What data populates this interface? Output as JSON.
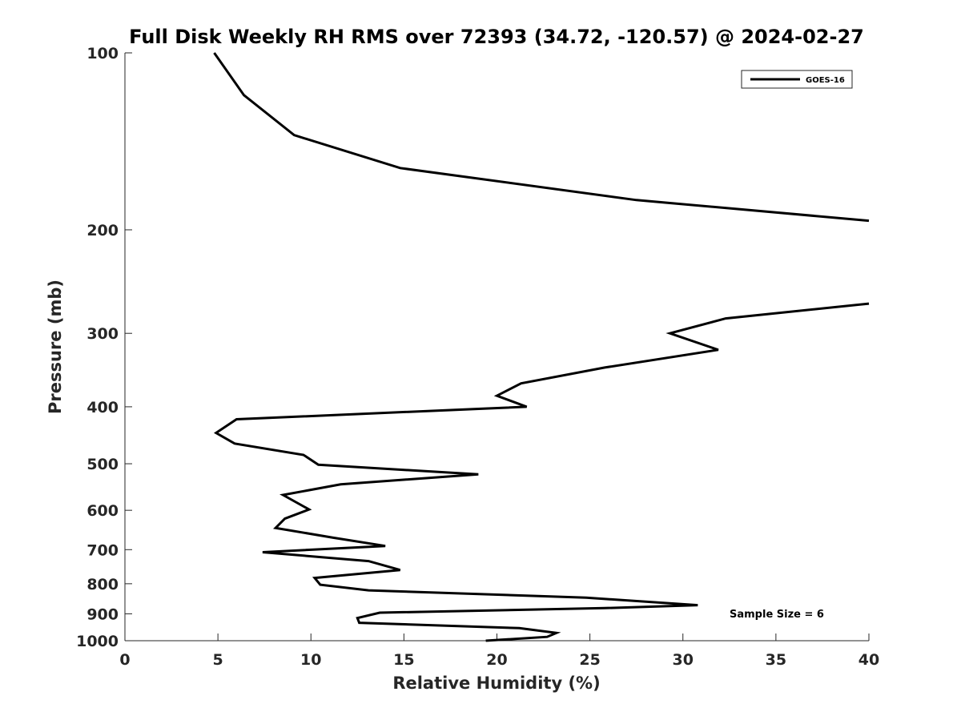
{
  "chart_data": {
    "type": "line",
    "title": "Full Disk Weekly RH RMS over 72393 (34.72, -120.57) @ 2024-02-27",
    "xlabel": "Relative Humidity (%)",
    "ylabel": "Pressure (mb)",
    "xlim": [
      0,
      40
    ],
    "ylim": [
      100,
      1000
    ],
    "yscale": "log",
    "y_reversed": true,
    "grid": false,
    "x_ticks": [
      0,
      5,
      10,
      15,
      20,
      25,
      30,
      35,
      40
    ],
    "y_ticks": [
      100,
      200,
      300,
      400,
      500,
      600,
      700,
      800,
      900,
      1000
    ],
    "legend": {
      "position": "top-right",
      "entries": [
        "GOES-16"
      ]
    },
    "annotations": [
      "Sample Size = 6"
    ],
    "series": [
      {
        "name": "GOES-16",
        "color": "#000000",
        "segments": [
          [
            {
              "x": 4.8,
              "p": 100
            },
            {
              "x": 6.4,
              "p": 118
            },
            {
              "x": 9.1,
              "p": 138
            },
            {
              "x": 14.8,
              "p": 157
            },
            {
              "x": 27.5,
              "p": 178
            },
            {
              "x": 40.0,
              "p": 193
            }
          ],
          [
            {
              "x": 40.0,
              "p": 267
            },
            {
              "x": 32.3,
              "p": 283
            },
            {
              "x": 29.3,
              "p": 300
            },
            {
              "x": 31.9,
              "p": 320
            },
            {
              "x": 25.8,
              "p": 343
            },
            {
              "x": 21.3,
              "p": 365
            },
            {
              "x": 20.0,
              "p": 383
            },
            {
              "x": 21.6,
              "p": 400
            },
            {
              "x": 6.0,
              "p": 420
            },
            {
              "x": 4.9,
              "p": 443
            },
            {
              "x": 5.9,
              "p": 462
            },
            {
              "x": 9.6,
              "p": 483
            },
            {
              "x": 10.4,
              "p": 502
            },
            {
              "x": 19.0,
              "p": 521
            },
            {
              "x": 11.6,
              "p": 542
            },
            {
              "x": 8.5,
              "p": 565
            },
            {
              "x": 9.9,
              "p": 598
            },
            {
              "x": 8.6,
              "p": 620
            },
            {
              "x": 8.1,
              "p": 643
            },
            {
              "x": 11.2,
              "p": 668
            },
            {
              "x": 14.0,
              "p": 690
            },
            {
              "x": 7.4,
              "p": 707
            },
            {
              "x": 13.1,
              "p": 732
            },
            {
              "x": 14.8,
              "p": 758
            },
            {
              "x": 10.2,
              "p": 782
            },
            {
              "x": 10.5,
              "p": 803
            },
            {
              "x": 13.1,
              "p": 821
            },
            {
              "x": 24.8,
              "p": 845
            },
            {
              "x": 30.8,
              "p": 870
            },
            {
              "x": 25.8,
              "p": 880
            },
            {
              "x": 13.7,
              "p": 896
            },
            {
              "x": 12.5,
              "p": 915
            },
            {
              "x": 12.6,
              "p": 932
            },
            {
              "x": 21.2,
              "p": 952
            },
            {
              "x": 23.2,
              "p": 970
            },
            {
              "x": 22.7,
              "p": 985
            },
            {
              "x": 19.4,
              "p": 1000
            }
          ]
        ]
      }
    ]
  }
}
